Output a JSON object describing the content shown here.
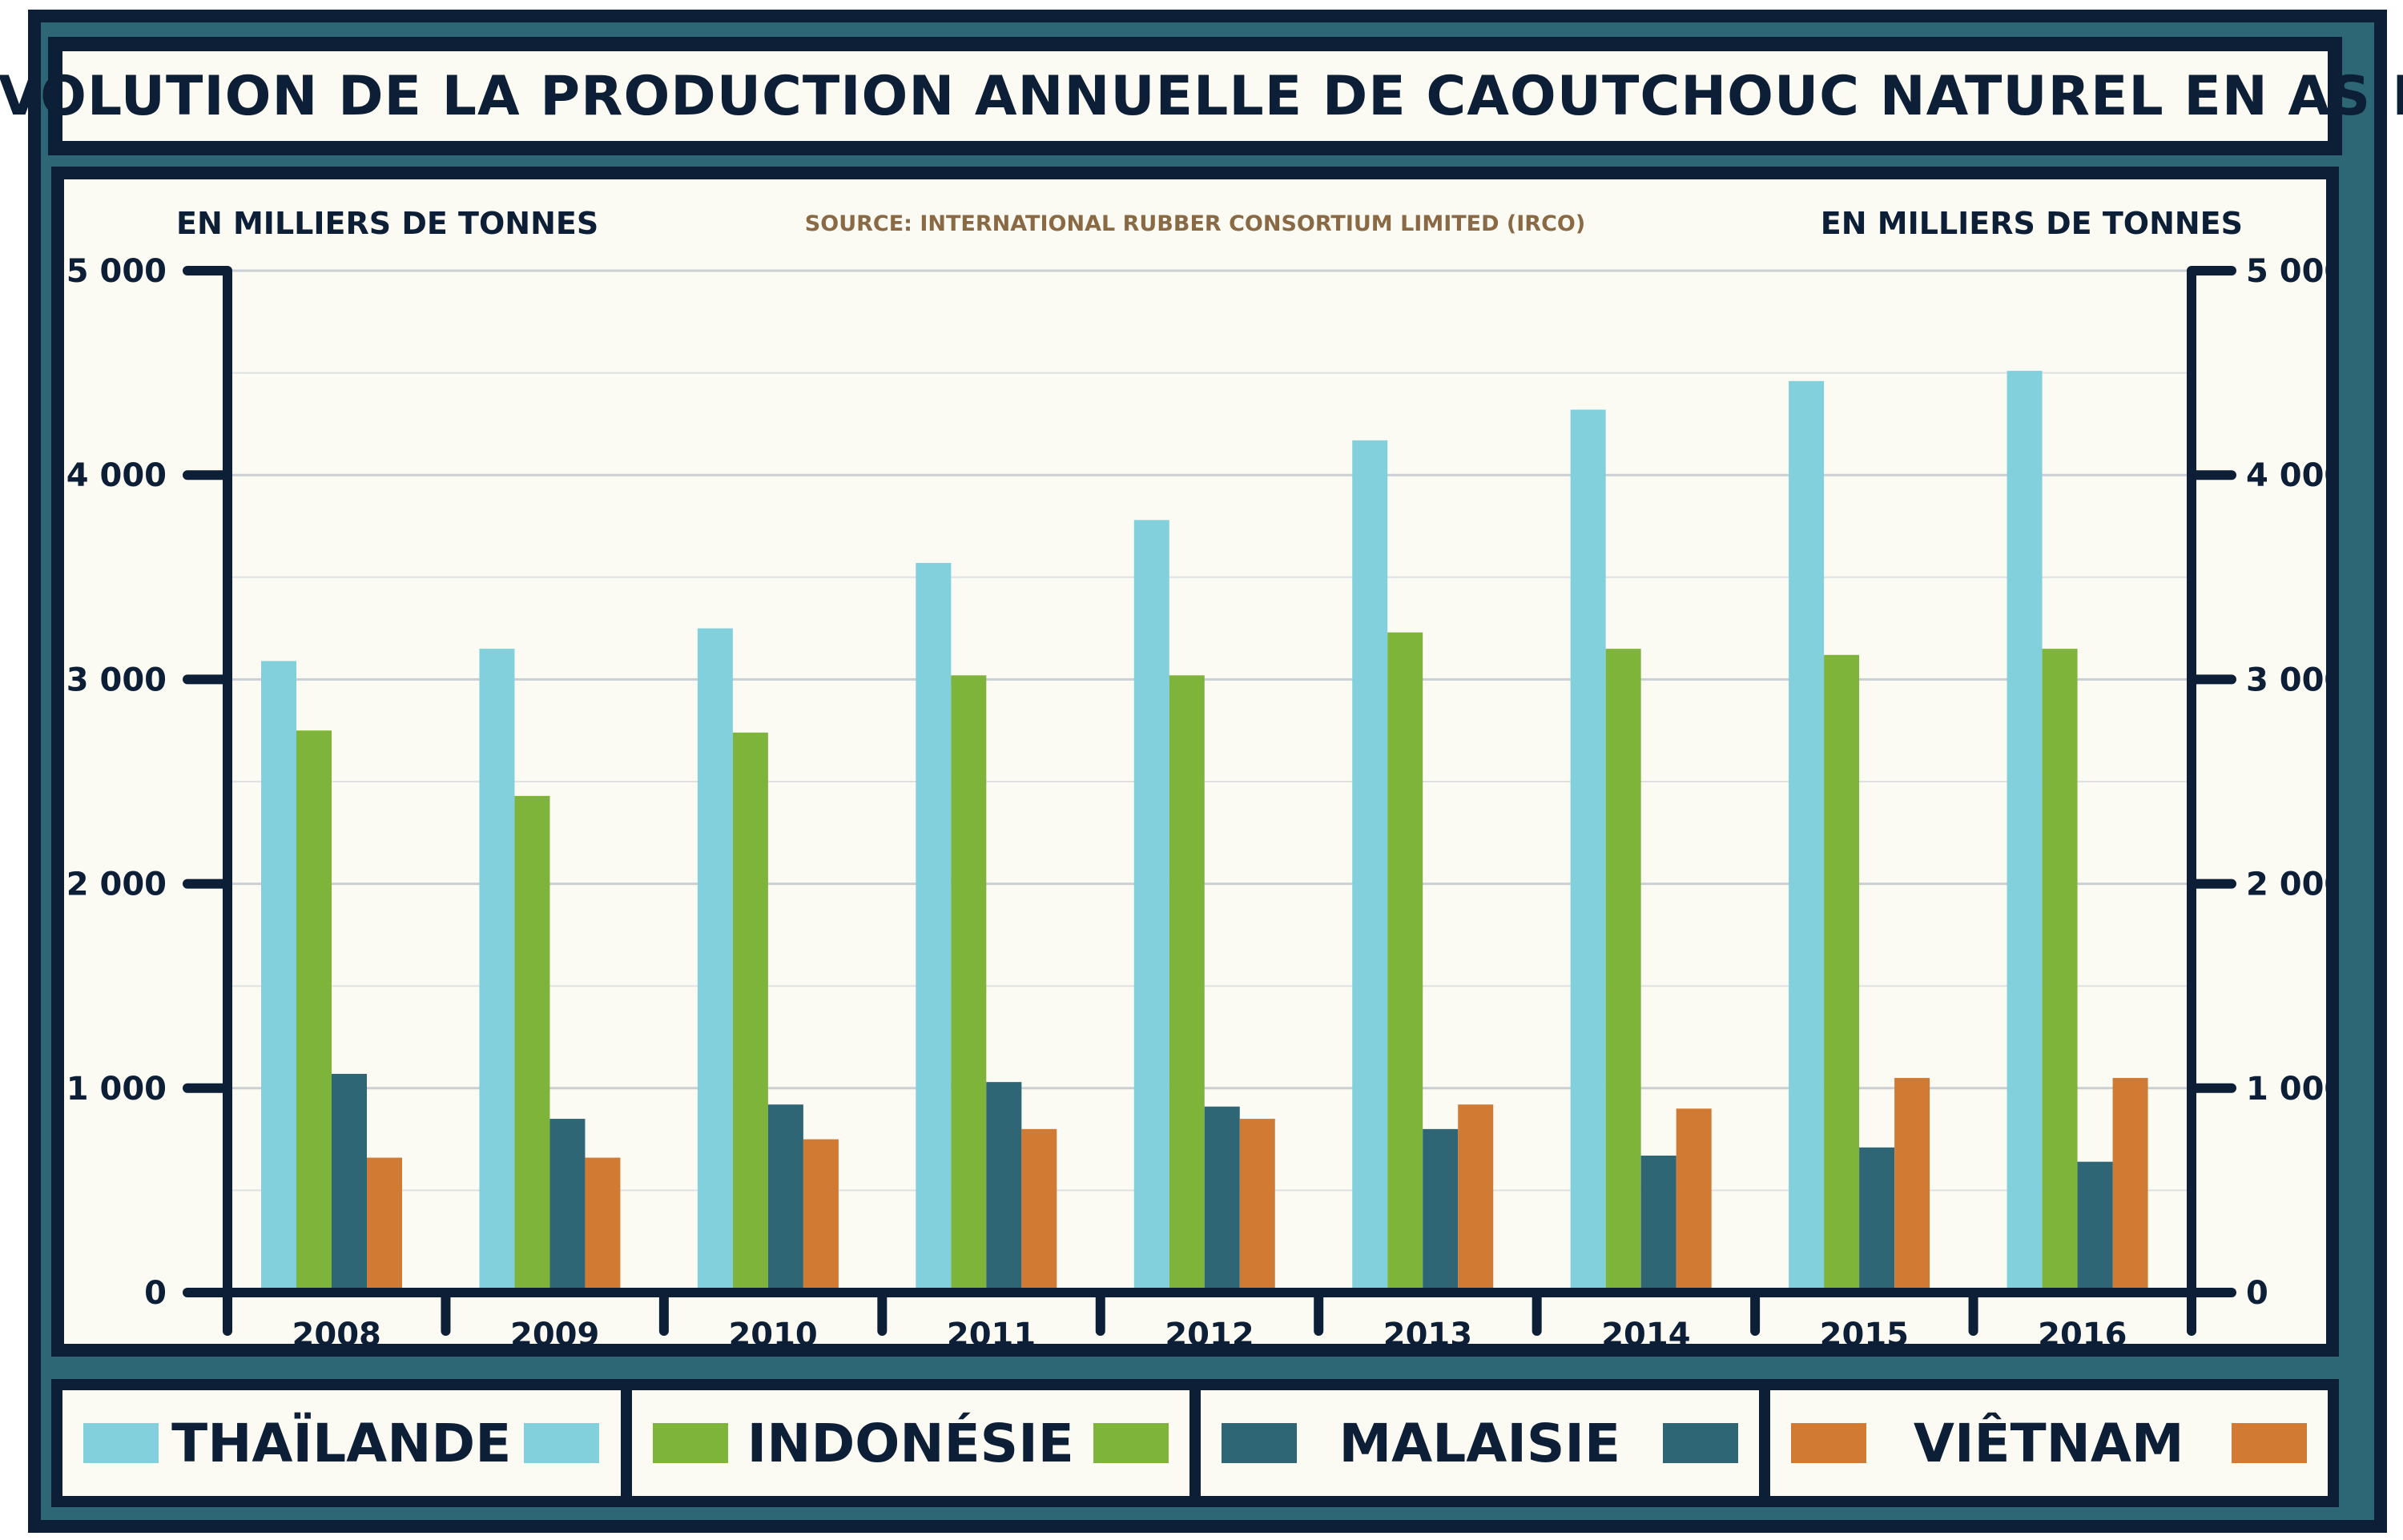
{
  "title": "ÉVOLUTION DE LA PRODUCTION ANNUELLE DE CAOUTCHOUC NATUREL EN ASIE",
  "source": "SOURCE: INTERNATIONAL RUBBER CONSORTIUM LIMITED (IRCO)",
  "colors": {
    "THAÏLANDE": "#82d0db",
    "INDONÉSIE": "#7fb43a",
    "MALAISIE": "#2e6675",
    "VIÊTNAM": "#d17a34",
    "frame": "#0d1f36",
    "background": "#fcfbf3"
  },
  "chart_data": {
    "type": "bar",
    "title": "ÉVOLUTION DE LA PRODUCTION ANNUELLE DE CAOUTCHOUC NATUREL EN ASIE",
    "ylabel": "EN MILLIERS DE TONNES",
    "ylabel_right": "EN MILLIERS DE TONNES",
    "xlabel": "",
    "ylim": [
      0,
      5000
    ],
    "yticks": [
      0,
      1000,
      2000,
      3000,
      4000,
      5000
    ],
    "ytick_labels": [
      "0",
      "1 000",
      "2 000",
      "3 000",
      "4 000",
      "5 000"
    ],
    "grid": true,
    "legend_position": "bottom",
    "categories": [
      "2008",
      "2009",
      "2010",
      "2011",
      "2012",
      "2013",
      "2014",
      "2015",
      "2016"
    ],
    "series": [
      {
        "name": "THAÏLANDE",
        "values": [
          3090,
          3150,
          3250,
          3570,
          3780,
          4170,
          4320,
          4460,
          4510
        ]
      },
      {
        "name": "INDONÉSIE",
        "values": [
          2750,
          2430,
          2740,
          3020,
          3020,
          3230,
          3150,
          3120,
          3150
        ]
      },
      {
        "name": "MALAISIE",
        "values": [
          1070,
          850,
          920,
          1030,
          910,
          800,
          670,
          710,
          640
        ]
      },
      {
        "name": "VIÊTNAM",
        "values": [
          660,
          660,
          750,
          800,
          850,
          920,
          900,
          1050,
          1050
        ]
      }
    ]
  }
}
